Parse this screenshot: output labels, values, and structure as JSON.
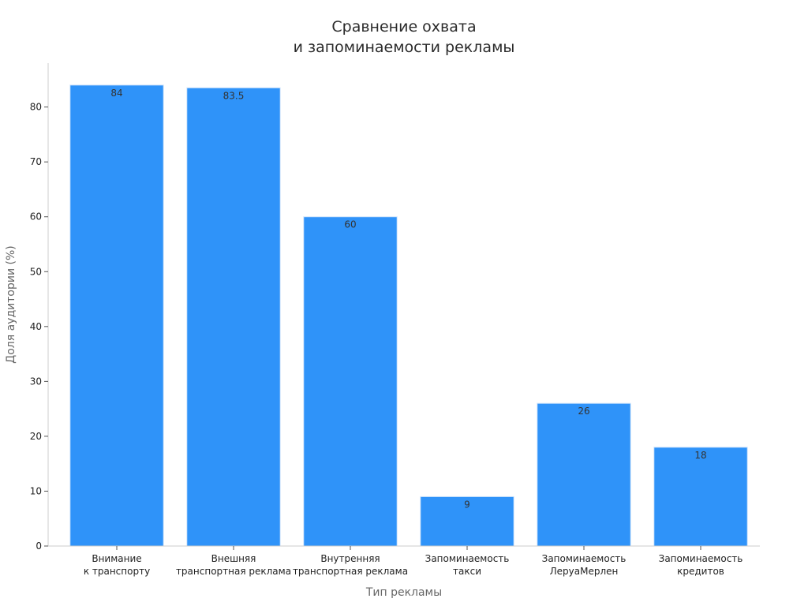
{
  "chart_data": {
    "type": "bar",
    "title_lines": [
      "Сравнение охвата",
      "и запоминаемости рекламы"
    ],
    "xlabel": "Тип рекламы",
    "ylabel": "Доля аудитории (%)",
    "ylim": [
      0,
      88
    ],
    "yticks": [
      0,
      10,
      20,
      30,
      40,
      50,
      60,
      70,
      80
    ],
    "grid": false,
    "categories": [
      [
        "Внимание",
        "к транспорту"
      ],
      [
        "Внешняя",
        "транспортная реклама"
      ],
      [
        "Внутренняя",
        "транспортная реклама"
      ],
      [
        "Запоминаемость",
        "такси"
      ],
      [
        "Запоминаемость",
        "ЛеруаМерлен"
      ],
      [
        "Запоминаемость",
        "кредитов"
      ]
    ],
    "values": [
      84,
      83.5,
      60,
      9,
      26,
      18
    ],
    "value_labels": [
      "84",
      "83.5",
      "60",
      "9",
      "26",
      "18"
    ],
    "bar_color": "#2f93f9",
    "bar_edge_color": "#cfe3fb",
    "axis_color": "#cccccc"
  }
}
